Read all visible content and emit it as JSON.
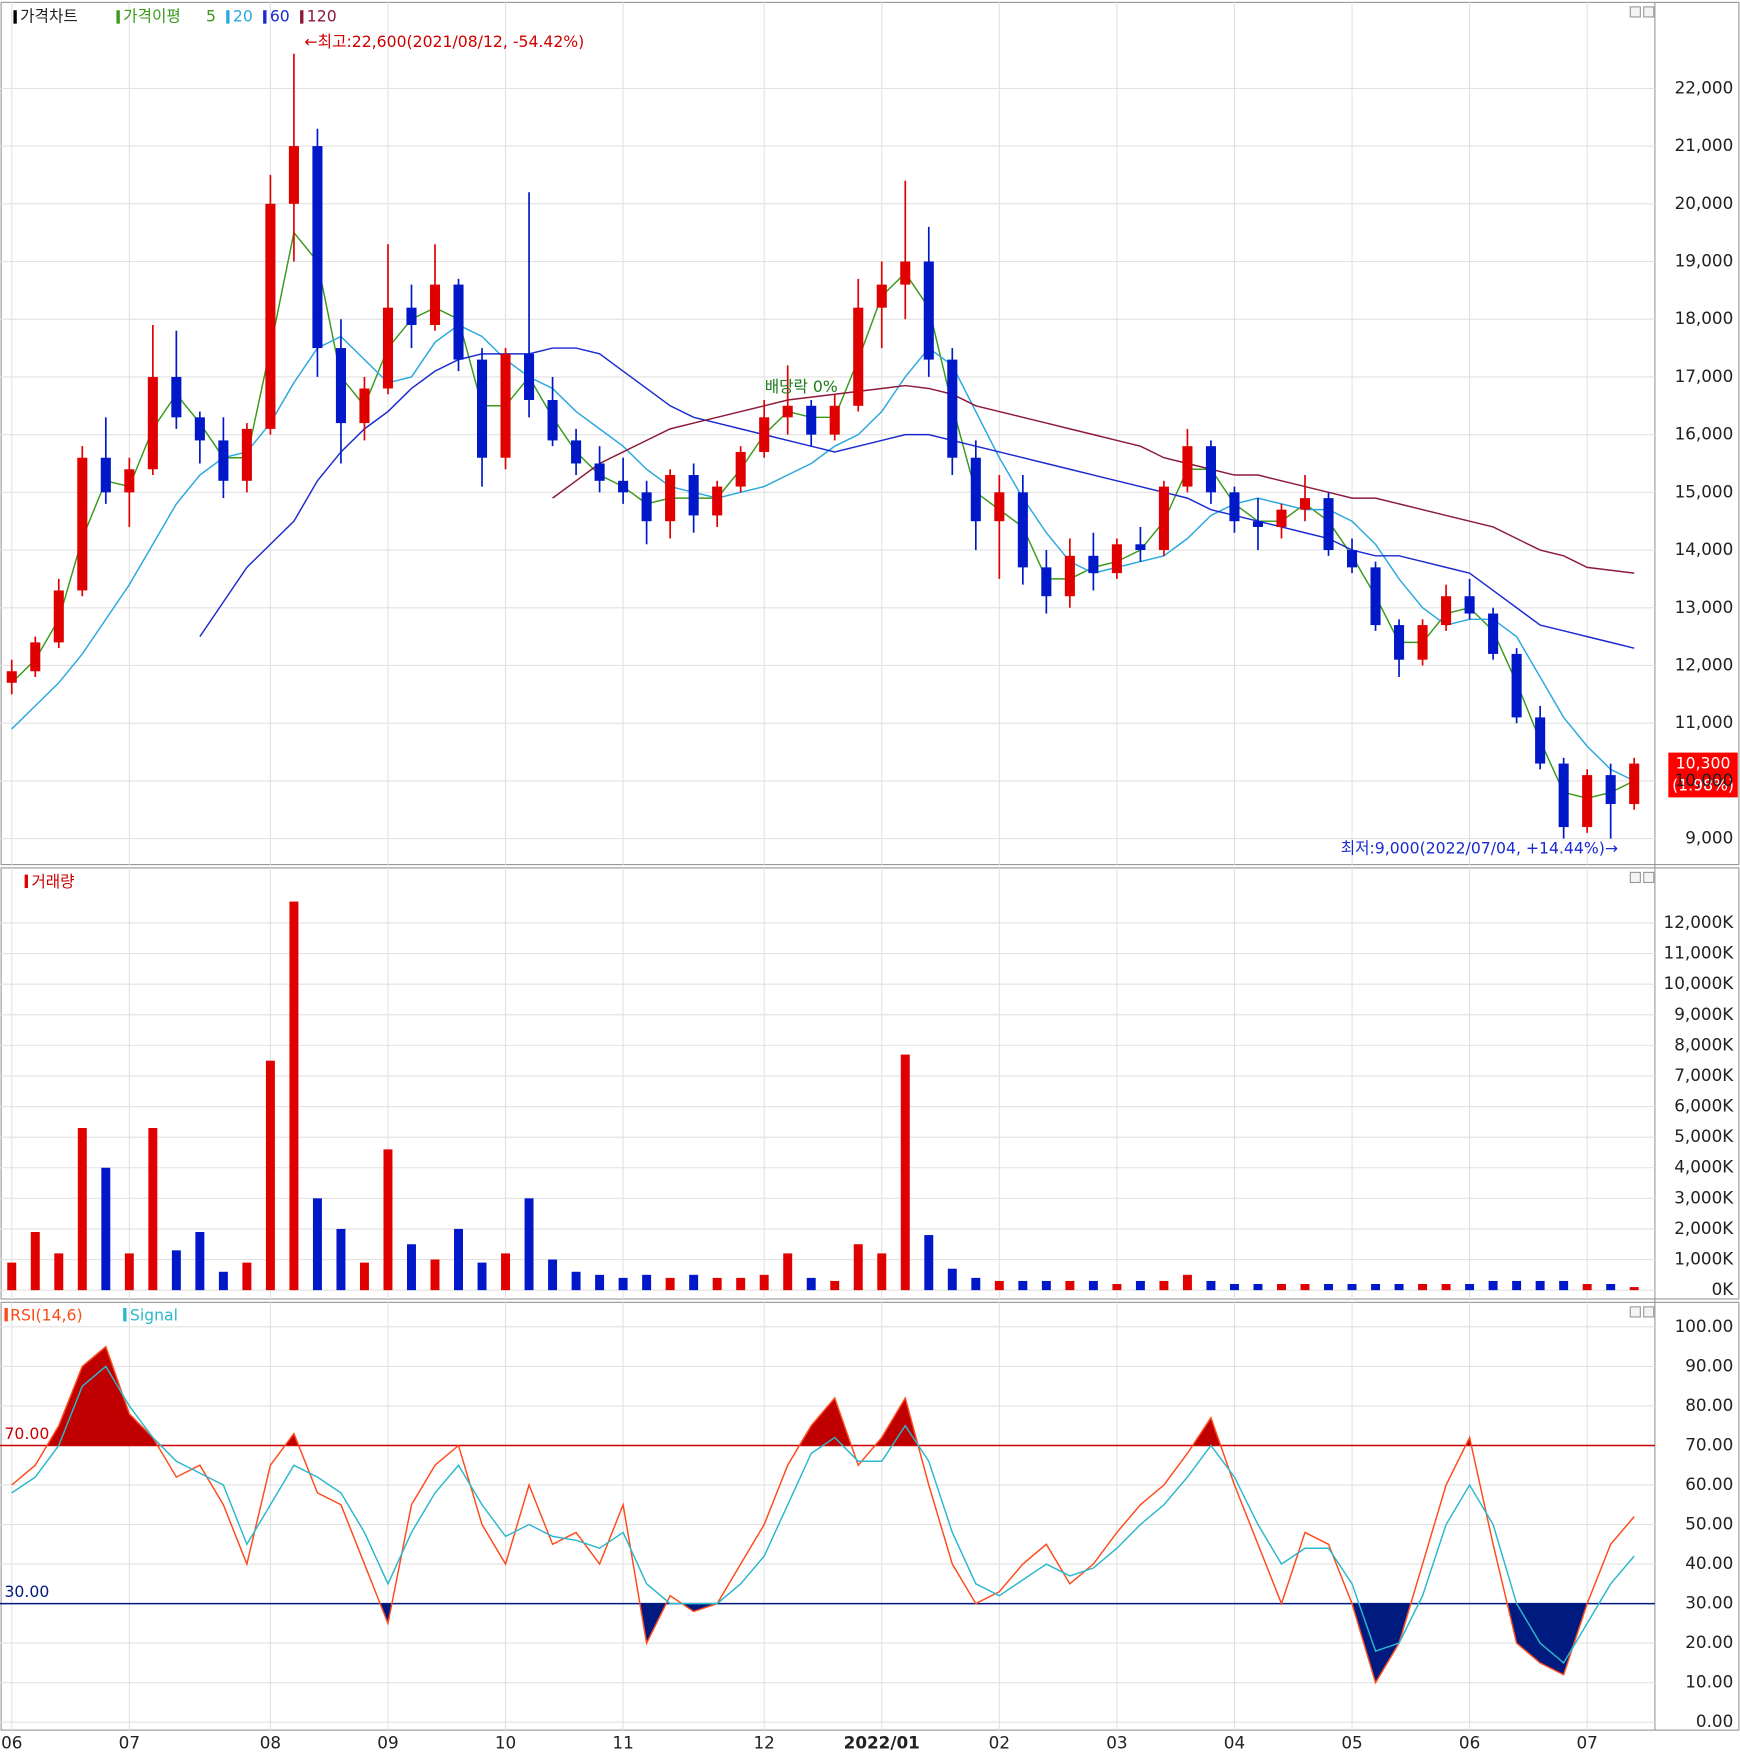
{
  "chart_data": [
    {
      "type": "candlestick",
      "title": "가격차트",
      "ma_label": "가격이평",
      "up_color": "#e00000",
      "down_color": "#0018c8",
      "categories": [
        "06",
        null,
        null,
        null,
        null,
        "07",
        null,
        null,
        null,
        null,
        null,
        "08",
        null,
        null,
        null,
        null,
        "09",
        null,
        null,
        null,
        null,
        "10",
        null,
        null,
        null,
        null,
        "11",
        null,
        null,
        null,
        null,
        null,
        "12",
        null,
        null,
        null,
        null,
        "2022/01",
        null,
        null,
        null,
        null,
        "02",
        null,
        null,
        null,
        null,
        "03",
        null,
        null,
        null,
        null,
        "04",
        null,
        null,
        null,
        null,
        "05",
        null,
        null,
        null,
        null,
        "06",
        null,
        null,
        null,
        null,
        "07",
        null,
        null
      ],
      "open": [
        11700,
        11900,
        12400,
        13300,
        15600,
        15000,
        15400,
        17000,
        16300,
        15900,
        15200,
        16100,
        20000,
        21000,
        17500,
        16200,
        16800,
        18200,
        17900,
        18600,
        17300,
        15600,
        17400,
        16600,
        15900,
        15500,
        15200,
        15000,
        14500,
        15300,
        14600,
        15100,
        15700,
        16300,
        16500,
        16000,
        16500,
        18200,
        18600,
        19000,
        17300,
        15600,
        14500,
        15000,
        13700,
        13200,
        13900,
        13600,
        14100,
        14000,
        15100,
        15800,
        15000,
        14500,
        14400,
        14700,
        14900,
        14000,
        13700,
        12700,
        12100,
        12700,
        13200,
        12900,
        12200,
        11100,
        10300,
        9200,
        10100,
        9600
      ],
      "high": [
        12100,
        12500,
        13500,
        15800,
        16300,
        15600,
        17900,
        17800,
        16400,
        16300,
        16200,
        20500,
        22600,
        21300,
        18000,
        17000,
        19300,
        18600,
        19300,
        18700,
        17500,
        17500,
        20200,
        17000,
        16100,
        15800,
        15600,
        15200,
        15400,
        15500,
        15200,
        15800,
        16600,
        17200,
        16600,
        16700,
        18700,
        19000,
        20400,
        19600,
        17500,
        15900,
        15300,
        15300,
        14000,
        14200,
        14300,
        14200,
        14400,
        15200,
        16100,
        15900,
        15100,
        14900,
        14800,
        15300,
        15000,
        14200,
        13800,
        12800,
        12800,
        13400,
        13500,
        13000,
        12300,
        11300,
        10400,
        10200,
        10300,
        10400
      ],
      "low": [
        11500,
        11800,
        12300,
        13200,
        14800,
        14400,
        15300,
        16100,
        15500,
        14900,
        15000,
        16000,
        19000,
        17000,
        15500,
        15900,
        16700,
        17500,
        17800,
        17100,
        15100,
        15400,
        16300,
        15800,
        15300,
        15000,
        14800,
        14100,
        14200,
        14300,
        14400,
        15000,
        15600,
        16000,
        15800,
        15900,
        16400,
        17500,
        18000,
        17000,
        15300,
        14000,
        13500,
        13400,
        12900,
        13000,
        13300,
        13500,
        13800,
        13900,
        15000,
        14800,
        14300,
        14000,
        14200,
        14500,
        13900,
        13600,
        12600,
        11800,
        12000,
        12600,
        12800,
        12100,
        11000,
        10200,
        9000,
        9100,
        9000,
        9500
      ],
      "close": [
        11900,
        12400,
        13300,
        15600,
        15000,
        15400,
        17000,
        16300,
        15900,
        15200,
        16100,
        20000,
        21000,
        17500,
        16200,
        16800,
        18200,
        17900,
        18600,
        17300,
        15600,
        17400,
        16600,
        15900,
        15500,
        15200,
        15000,
        14500,
        15300,
        14600,
        15100,
        15700,
        16300,
        16500,
        16000,
        16500,
        18200,
        18600,
        19000,
        17300,
        15600,
        14500,
        15000,
        13700,
        13200,
        13900,
        13600,
        14100,
        14000,
        15100,
        15800,
        15000,
        14500,
        14400,
        14700,
        14900,
        14000,
        13700,
        12700,
        12100,
        12700,
        13200,
        12900,
        12200,
        11100,
        10300,
        9200,
        10100,
        9600,
        10300
      ],
      "series": [
        {
          "name": "5",
          "color": "#3a9a1a",
          "values": [
            11700,
            12100,
            12800,
            14200,
            15200,
            15100,
            16100,
            16700,
            16200,
            15600,
            15600,
            17500,
            19500,
            19000,
            17000,
            16500,
            17500,
            18000,
            18200,
            18000,
            16500,
            16500,
            17000,
            16300,
            15700,
            15300,
            15100,
            14800,
            14900,
            14900,
            14900,
            15400,
            16000,
            16400,
            16300,
            16300,
            17300,
            18400,
            18800,
            18200,
            16500,
            15000,
            14700,
            14400,
            13500,
            13500,
            13700,
            13800,
            14000,
            14500,
            15400,
            15400,
            14800,
            14500,
            14500,
            14800,
            14500,
            13900,
            13200,
            12400,
            12400,
            12900,
            13000,
            12600,
            11700,
            10700,
            9800,
            9700,
            9800,
            10000
          ]
        },
        {
          "name": "20",
          "color": "#2aa8e0",
          "values": [
            10900,
            11300,
            11700,
            12200,
            12800,
            13400,
            14100,
            14800,
            15300,
            15600,
            15700,
            16200,
            16900,
            17500,
            17700,
            17300,
            16900,
            17000,
            17600,
            17900,
            17700,
            17300,
            17000,
            16800,
            16400,
            16100,
            15800,
            15400,
            15100,
            15000,
            14900,
            15000,
            15100,
            15300,
            15500,
            15800,
            16000,
            16400,
            17000,
            17500,
            17200,
            16400,
            15600,
            14900,
            14300,
            13800,
            13600,
            13700,
            13800,
            13900,
            14200,
            14600,
            14800,
            14900,
            14800,
            14700,
            14700,
            14500,
            14100,
            13500,
            13000,
            12700,
            12800,
            12800,
            12500,
            11800,
            11100,
            10600,
            10200,
            10000
          ]
        },
        {
          "name": "60",
          "color": "#1a2ad0",
          "values": [
            null,
            null,
            null,
            null,
            null,
            null,
            null,
            null,
            12500,
            13100,
            13700,
            14100,
            14500,
            15200,
            15700,
            16100,
            16400,
            16800,
            17100,
            17300,
            17400,
            17400,
            17400,
            17500,
            17500,
            17400,
            17100,
            16800,
            16500,
            16300,
            16200,
            16100,
            16000,
            15900,
            15800,
            15700,
            15800,
            15900,
            16000,
            16000,
            15900,
            15800,
            15700,
            15600,
            15500,
            15400,
            15300,
            15200,
            15100,
            15000,
            14900,
            14700,
            14600,
            14500,
            14400,
            14300,
            14200,
            14000,
            13900,
            13900,
            13800,
            13700,
            13600,
            13300,
            13000,
            12700,
            12600,
            12500,
            12400,
            12300
          ]
        },
        {
          "name": "120",
          "color": "#8b1a3a",
          "values": [
            null,
            null,
            null,
            null,
            null,
            null,
            null,
            null,
            null,
            null,
            null,
            null,
            null,
            null,
            null,
            null,
            null,
            null,
            null,
            null,
            null,
            null,
            null,
            14900,
            15200,
            15500,
            15700,
            15900,
            16100,
            16200,
            16300,
            16400,
            16500,
            16600,
            16650,
            16700,
            16750,
            16800,
            16850,
            16800,
            16700,
            16500,
            16400,
            16300,
            16200,
            16100,
            16000,
            15900,
            15800,
            15600,
            15500,
            15400,
            15300,
            15300,
            15200,
            15100,
            15000,
            14900,
            14900,
            14800,
            14700,
            14600,
            14500,
            14400,
            14200,
            14000,
            13900,
            13700,
            13650,
            13600
          ]
        }
      ],
      "annotations": [
        "←최고:22,600(2021/08/12, -54.42%)",
        "배당락 0%",
        "최저:9,000(2022/07/04, +14.44%)→"
      ],
      "last_price_label": "10,300",
      "last_change_label": "(1.98%)",
      "ylim": [
        8550,
        23490
      ],
      "yticks": [
        {
          "value": 9000,
          "label": "9,000"
        },
        {
          "value": 10000,
          "label": "10,000"
        },
        {
          "value": 11000,
          "label": "11,000"
        },
        {
          "value": 12000,
          "label": "12,000"
        },
        {
          "value": 13000,
          "label": "13,000"
        },
        {
          "value": 14000,
          "label": "14,000"
        },
        {
          "value": 15000,
          "label": "15,000"
        },
        {
          "value": 16000,
          "label": "16,000"
        },
        {
          "value": 17000,
          "label": "17,000"
        },
        {
          "value": 18000,
          "label": "18,000"
        },
        {
          "value": 19000,
          "label": "19,000"
        },
        {
          "value": 20000,
          "label": "20,000"
        },
        {
          "value": 21000,
          "label": "21,000"
        },
        {
          "value": 22000,
          "label": "22,000"
        }
      ],
      "grid": true
    },
    {
      "type": "bar",
      "title": "거래량",
      "values": [
        900,
        1900,
        1200,
        5300,
        4000,
        1200,
        5300,
        1300,
        1900,
        600,
        900,
        7500,
        12700,
        3000,
        2000,
        900,
        4600,
        1500,
        1000,
        2000,
        900,
        1200,
        3000,
        1000,
        600,
        500,
        400,
        500,
        400,
        500,
        400,
        400,
        500,
        1200,
        400,
        300,
        1500,
        1200,
        7700,
        1800,
        700,
        400,
        300,
        300,
        300,
        300,
        300,
        200,
        300,
        300,
        500,
        300,
        200,
        200,
        200,
        200,
        200,
        200,
        200,
        200,
        200,
        200,
        200,
        300,
        300,
        300,
        300,
        200,
        200,
        100
      ],
      "ylim": [
        -290,
        13800
      ],
      "yticks": [
        {
          "value": 0,
          "label": "0K"
        },
        {
          "value": 1000,
          "label": "1,000K"
        },
        {
          "value": 2000,
          "label": "2,000K"
        },
        {
          "value": 3000,
          "label": "3,000K"
        },
        {
          "value": 4000,
          "label": "4,000K"
        },
        {
          "value": 5000,
          "label": "5,000K"
        },
        {
          "value": 6000,
          "label": "6,000K"
        },
        {
          "value": 7000,
          "label": "7,000K"
        },
        {
          "value": 8000,
          "label": "8,000K"
        },
        {
          "value": 9000,
          "label": "9,000K"
        },
        {
          "value": 10000,
          "label": "10,000K"
        },
        {
          "value": 11000,
          "label": "11,000K"
        },
        {
          "value": 12000,
          "label": "12,000K"
        }
      ],
      "grid": true
    },
    {
      "type": "line",
      "series": [
        {
          "name": "RSI(14,6)",
          "color": "#ff4a1a",
          "values": [
            60,
            65,
            75,
            90,
            95,
            78,
            72,
            62,
            65,
            55,
            40,
            65,
            73,
            58,
            55,
            40,
            25,
            55,
            65,
            70,
            50,
            40,
            60,
            45,
            48,
            40,
            55,
            20,
            32,
            28,
            30,
            40,
            50,
            65,
            75,
            82,
            65,
            72,
            82,
            60,
            40,
            30,
            33,
            40,
            45,
            35,
            40,
            48,
            55,
            60,
            68,
            77,
            60,
            45,
            30,
            48,
            45,
            30,
            10,
            20,
            40,
            60,
            72,
            45,
            20,
            15,
            12,
            30,
            45,
            52
          ]
        },
        {
          "name": "Signal",
          "color": "#2ab8cc",
          "values": [
            58,
            62,
            70,
            85,
            90,
            80,
            72,
            66,
            63,
            60,
            45,
            55,
            65,
            62,
            58,
            48,
            35,
            48,
            58,
            65,
            55,
            47,
            50,
            47,
            46,
            44,
            48,
            35,
            30,
            30,
            30,
            35,
            42,
            55,
            68,
            72,
            66,
            66,
            75,
            66,
            48,
            35,
            32,
            36,
            40,
            37,
            39,
            44,
            50,
            55,
            62,
            70,
            62,
            50,
            40,
            44,
            44,
            35,
            18,
            20,
            32,
            50,
            60,
            50,
            30,
            20,
            15,
            25,
            35,
            42
          ]
        }
      ],
      "levels": [
        {
          "value": 70,
          "label": "70.00",
          "color": "#cc0000"
        },
        {
          "value": 30,
          "label": "30.00",
          "color": "#001a80"
        }
      ],
      "ylim": [
        -2,
        106.2
      ],
      "yticks": [
        {
          "value": 0,
          "label": "0.00"
        },
        {
          "value": 10,
          "label": "10.00"
        },
        {
          "value": 20,
          "label": "20.00"
        },
        {
          "value": 30,
          "label": "30.00"
        },
        {
          "value": 40,
          "label": "40.00"
        },
        {
          "value": 50,
          "label": "50.00"
        },
        {
          "value": 60,
          "label": "60.00"
        },
        {
          "value": 70,
          "label": "70.00"
        },
        {
          "value": 80,
          "label": "80.00"
        },
        {
          "value": 90,
          "label": "90.00"
        },
        {
          "value": 100,
          "label": "100.00"
        }
      ],
      "grid": true
    }
  ]
}
